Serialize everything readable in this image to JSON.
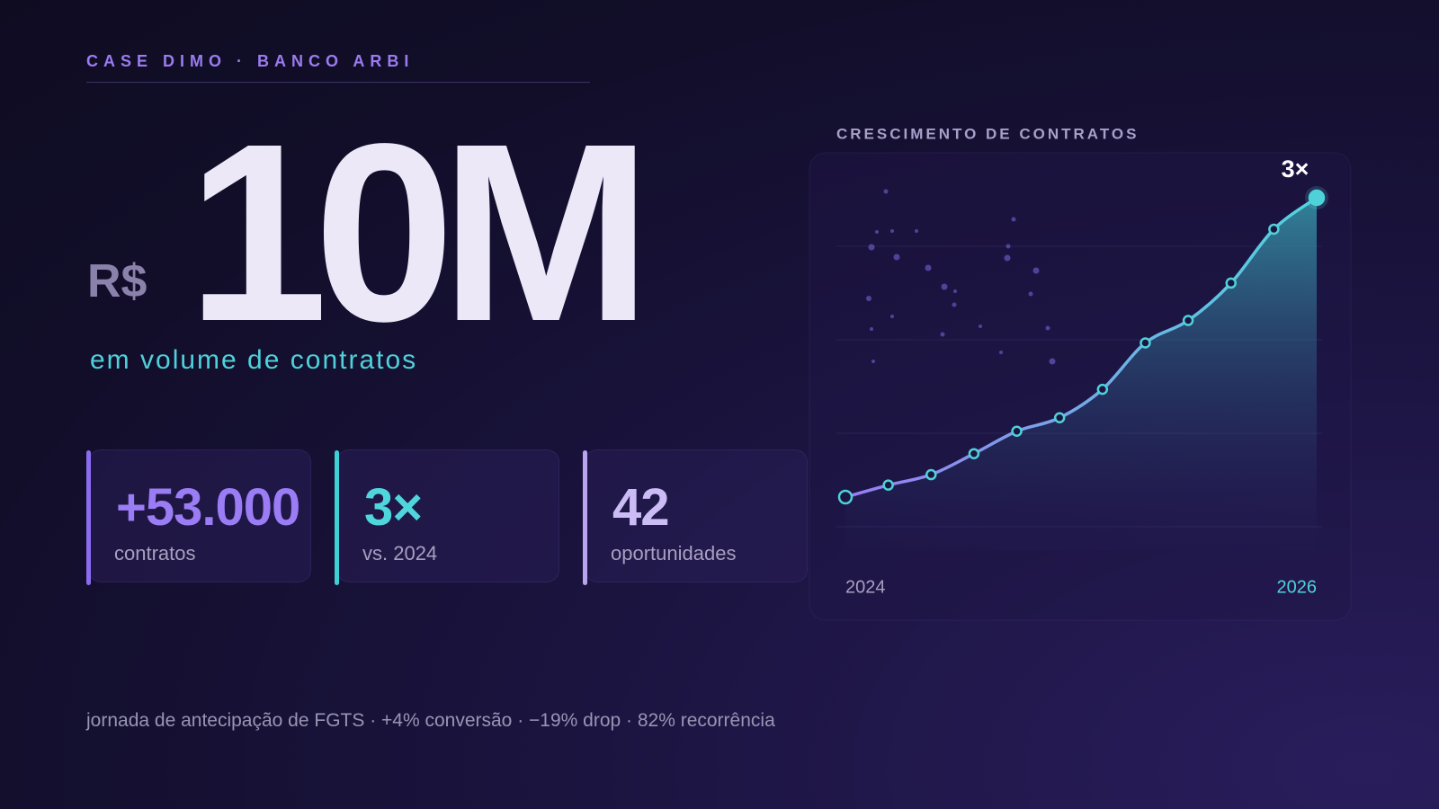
{
  "header": {
    "eyebrow": "CASE DIMO · BANCO ARBI"
  },
  "hero": {
    "currency": "R$",
    "value": "10M",
    "caption": "em volume de contratos"
  },
  "stats": [
    {
      "value": "+53.000",
      "label": "contratos"
    },
    {
      "value": "3×",
      "label": "vs. 2024"
    },
    {
      "value": "42",
      "label": "oportunidades"
    }
  ],
  "footer": "jornada de antecipação de FGTS · +4% conversão · −19% drop · 82% recorrência",
  "chart_data": {
    "type": "area",
    "title": "CRESCIMENTO DE CONTRATOS",
    "categories": [
      "2024",
      null,
      null,
      null,
      null,
      null,
      null,
      null,
      null,
      null,
      null,
      "2026"
    ],
    "values": [
      1,
      1.08,
      1.15,
      1.29,
      1.44,
      1.53,
      1.72,
      2.03,
      2.18,
      2.43,
      2.79,
      3
    ],
    "annotation": "3×",
    "color": "#4fd1d9"
  }
}
